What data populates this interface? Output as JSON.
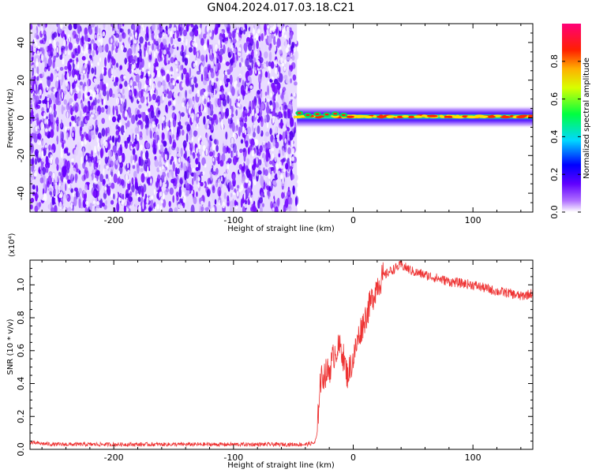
{
  "page": {
    "title": "GN04.2024.017.03.18.C21"
  },
  "chart_data": [
    {
      "type": "heatmap",
      "xlabel": "Height of straight line (km)",
      "ylabel": "Frequency (Hz)",
      "xlim": [
        -270,
        150
      ],
      "ylim": [
        -50,
        50
      ],
      "x_ticks": [
        -200,
        -100,
        0,
        100
      ],
      "y_ticks": [
        -40,
        -20,
        0,
        20,
        40
      ],
      "description_regions": {
        "noise_region_x": [
          -270,
          -47
        ],
        "signal_band_x": [
          -47,
          150
        ],
        "signal_band_frequency": [
          -4,
          5
        ]
      },
      "colorbar": {
        "label": "Normalized spectral amplitude",
        "range": [
          0.0,
          1.0
        ],
        "ticks": [
          0.0,
          0.2,
          0.4,
          0.6,
          0.8
        ],
        "tick_labels": [
          "0.0",
          "0.2",
          "0.4",
          "0.6",
          "0.8"
        ],
        "colors": [
          "#ffffff",
          "#7c00ff",
          "#0000ff",
          "#00e5ff",
          "#00ff00",
          "#ffff00",
          "#ff0000",
          "#ff0078"
        ]
      }
    },
    {
      "type": "line",
      "xlabel": "Height of straight line (km)",
      "ylabel": "SNR (10 * v/v)",
      "y_multiplier": "(x10⁴)",
      "xlim": [
        -270,
        150
      ],
      "ylim": [
        0,
        1.15
      ],
      "x_ticks": [
        -200,
        -100,
        0,
        100
      ],
      "y_ticks": [
        0.0,
        0.2,
        0.4,
        0.6,
        0.8,
        1.0
      ],
      "y_tick_labels": [
        "0.0",
        "0.2",
        "0.4",
        "0.6",
        "0.8",
        "1.0"
      ],
      "color": "#ee3333",
      "series": [
        {
          "x": [
            -270,
            -250,
            -200,
            -150,
            -100,
            -60,
            -40,
            -32,
            -30,
            -28,
            -25,
            -20,
            -15,
            -10,
            -5,
            0,
            5,
            10,
            15,
            20,
            25,
            30,
            35,
            40,
            50,
            60,
            70,
            80,
            90,
            100,
            110,
            120,
            130,
            140,
            150
          ],
          "values": [
            0.04,
            0.03,
            0.03,
            0.03,
            0.03,
            0.03,
            0.03,
            0.04,
            0.1,
            0.4,
            0.45,
            0.48,
            0.6,
            0.62,
            0.45,
            0.55,
            0.7,
            0.8,
            0.9,
            1.0,
            1.05,
            1.08,
            1.1,
            1.12,
            1.08,
            1.06,
            1.04,
            1.02,
            1.01,
            1.0,
            0.98,
            0.96,
            0.95,
            0.93,
            0.95
          ]
        }
      ]
    }
  ]
}
